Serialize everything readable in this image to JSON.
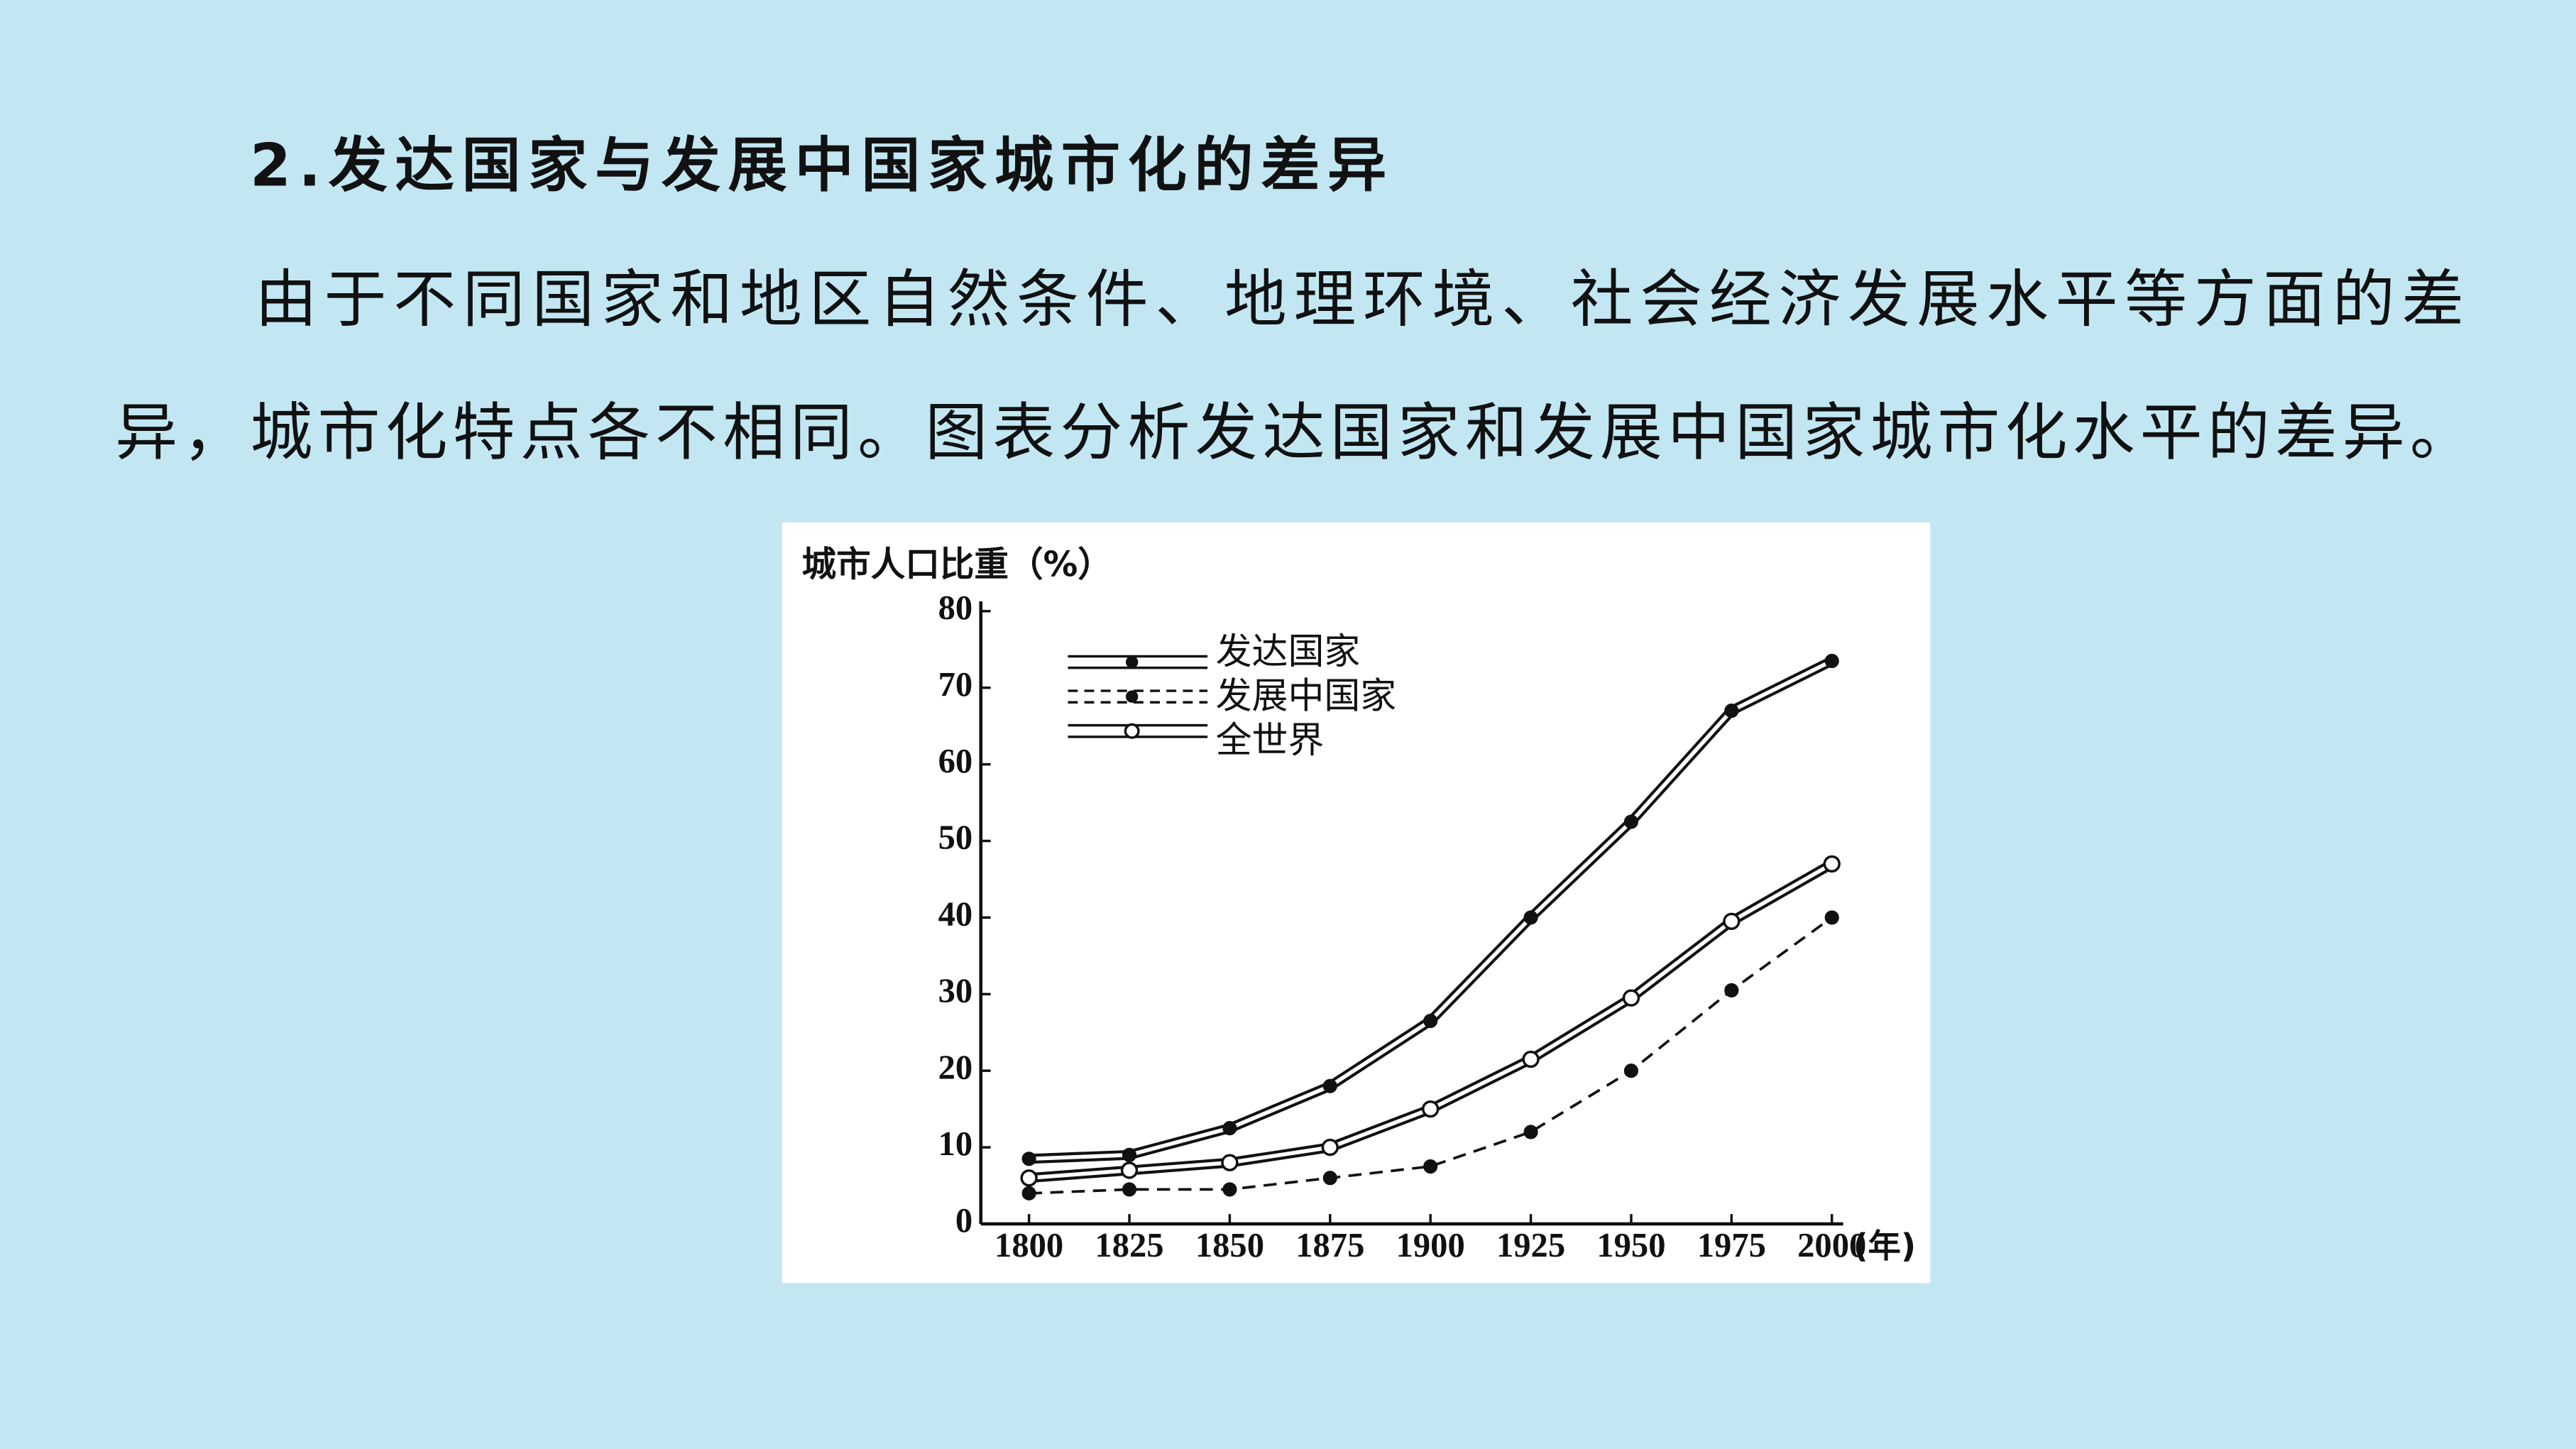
{
  "heading": "2.发达国家与发展中国家城市化的差异",
  "paragraph_lines": [
    "由于不同国家和地区自然条件、地理环境、社会经济发展水平等方面的差",
    "异，城市化特点各不相同。图表分析发达国家和发展中国家城市化水平的差异。"
  ],
  "chart_data": {
    "type": "line",
    "y_label": "城市人口比重（%）",
    "x_unit": "(年)",
    "x": [
      1800,
      1825,
      1850,
      1875,
      1900,
      1925,
      1950,
      1975,
      2000
    ],
    "xlim": [
      1788,
      2002
    ],
    "xticks": [
      1800,
      1825,
      1850,
      1875,
      1900,
      1925,
      1950,
      1975,
      2000
    ],
    "ylim": [
      0,
      80
    ],
    "yticks": [
      0,
      10,
      20,
      30,
      40,
      50,
      60,
      70,
      80
    ],
    "legend": "upper left",
    "series": [
      {
        "name": "发达国家",
        "color": "#111111",
        "line_style": "double",
        "marker": "filled",
        "values": [
          8.5,
          9,
          12.5,
          18,
          26.5,
          40,
          52.5,
          67,
          73.5
        ]
      },
      {
        "name": "发展中国家",
        "color": "#111111",
        "line_style": "dashed",
        "marker": "filled",
        "values": [
          4,
          4.5,
          4.5,
          6,
          7.5,
          12,
          20,
          30.5,
          40
        ]
      },
      {
        "name": "全世界",
        "color": "#111111",
        "line_style": "double",
        "marker": "open",
        "values": [
          6,
          7,
          8,
          10,
          15,
          21.5,
          29.5,
          39.5,
          47
        ]
      }
    ]
  }
}
